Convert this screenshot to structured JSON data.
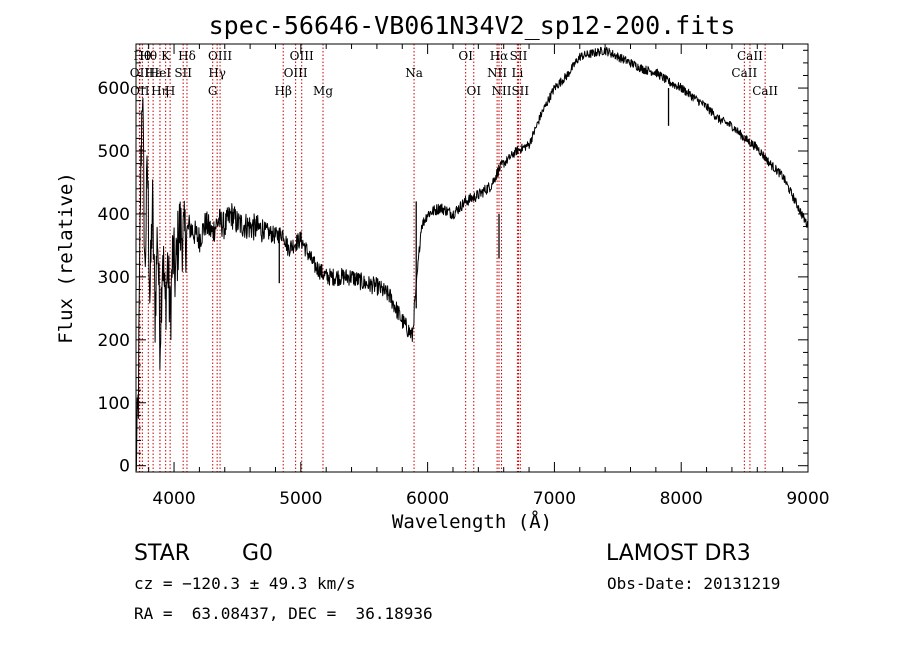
{
  "chart_data": {
    "type": "line",
    "title": "spec-56646-VB061N34V2_sp12-200.fits",
    "xlabel": "Wavelength (Å)",
    "ylabel": "Flux (relative)",
    "xlim": [
      3700,
      9000
    ],
    "ylim": [
      -10,
      670
    ],
    "xticks": [
      4000,
      5000,
      6000,
      7000,
      8000,
      9000
    ],
    "yticks": [
      0,
      100,
      200,
      300,
      400,
      500,
      600
    ],
    "series": [
      {
        "name": "flux",
        "anchors": [
          [
            3700,
            0
          ],
          [
            3710,
            50
          ],
          [
            3720,
            120
          ],
          [
            3735,
            430
          ],
          [
            3750,
            620
          ],
          [
            3770,
            300
          ],
          [
            3790,
            480
          ],
          [
            3810,
            260
          ],
          [
            3830,
            420
          ],
          [
            3850,
            240
          ],
          [
            3870,
            380
          ],
          [
            3890,
            200
          ],
          [
            3910,
            350
          ],
          [
            3930,
            250
          ],
          [
            3950,
            320
          ],
          [
            3970,
            230
          ],
          [
            3990,
            340
          ],
          [
            4010,
            300
          ],
          [
            4040,
            380
          ],
          [
            4080,
            360
          ],
          [
            4120,
            380
          ],
          [
            4200,
            360
          ],
          [
            4250,
            385
          ],
          [
            4300,
            370
          ],
          [
            4350,
            390
          ],
          [
            4400,
            380
          ],
          [
            4450,
            400
          ],
          [
            4500,
            385
          ],
          [
            4600,
            380
          ],
          [
            4700,
            375
          ],
          [
            4800,
            365
          ],
          [
            4860,
            370
          ],
          [
            4900,
            345
          ],
          [
            5000,
            360
          ],
          [
            5100,
            320
          ],
          [
            5200,
            300
          ],
          [
            5300,
            300
          ],
          [
            5400,
            300
          ],
          [
            5500,
            290
          ],
          [
            5600,
            285
          ],
          [
            5700,
            270
          ],
          [
            5750,
            250
          ],
          [
            5800,
            230
          ],
          [
            5850,
            215
          ],
          [
            5880,
            205
          ],
          [
            5900,
            260
          ],
          [
            5950,
            380
          ],
          [
            6000,
            400
          ],
          [
            6100,
            410
          ],
          [
            6200,
            400
          ],
          [
            6300,
            420
          ],
          [
            6400,
            430
          ],
          [
            6500,
            445
          ],
          [
            6560,
            470
          ],
          [
            6600,
            480
          ],
          [
            6700,
            500
          ],
          [
            6800,
            510
          ],
          [
            6900,
            560
          ],
          [
            7000,
            600
          ],
          [
            7100,
            620
          ],
          [
            7200,
            650
          ],
          [
            7300,
            655
          ],
          [
            7400,
            660
          ],
          [
            7500,
            650
          ],
          [
            7600,
            640
          ],
          [
            7700,
            630
          ],
          [
            7800,
            625
          ],
          [
            7900,
            610
          ],
          [
            8000,
            600
          ],
          [
            8100,
            585
          ],
          [
            8200,
            570
          ],
          [
            8300,
            550
          ],
          [
            8400,
            540
          ],
          [
            8500,
            520
          ],
          [
            8600,
            505
          ],
          [
            8700,
            480
          ],
          [
            8800,
            460
          ],
          [
            8900,
            420
          ],
          [
            8950,
            400
          ],
          [
            9000,
            380
          ]
        ]
      }
    ],
    "spikes": [
      {
        "x": 6563,
        "y0": 400,
        "y1": 330
      },
      {
        "x": 7900,
        "y0": 600,
        "y1": 540
      },
      {
        "x": 4830,
        "y0": 368,
        "y1": 290
      },
      {
        "x": 5910,
        "y0": 250,
        "y1": 420
      }
    ],
    "lines": [
      {
        "x": 3750,
        "label": "Hθ",
        "row": 0
      },
      {
        "x": 3727,
        "label": "OII",
        "row": 1
      },
      {
        "x": 3730,
        "label": "OII",
        "row": 2
      },
      {
        "x": 3797,
        "label": "Hθ",
        "row": 0
      },
      {
        "x": 3835,
        "label": "Hε",
        "row": 1
      },
      {
        "x": 3889,
        "label": "HeI",
        "row": 1
      },
      {
        "x": 3889,
        "label": "Hη",
        "row": 2
      },
      {
        "x": 3934,
        "label": "K",
        "row": 0
      },
      {
        "x": 3969,
        "label": "H",
        "row": 2
      },
      {
        "x": 4072,
        "label": "SII",
        "row": 1
      },
      {
        "x": 4102,
        "label": "Hδ",
        "row": 0
      },
      {
        "x": 4305,
        "label": "G",
        "row": 2
      },
      {
        "x": 4340,
        "label": "Hγ",
        "row": 1
      },
      {
        "x": 4363,
        "label": "OIII",
        "row": 0
      },
      {
        "x": 4861,
        "label": "Hβ",
        "row": 2
      },
      {
        "x": 4959,
        "label": "OIII",
        "row": 1
      },
      {
        "x": 5007,
        "label": "OIII",
        "row": 0
      },
      {
        "x": 5175,
        "label": "Mg",
        "row": 2
      },
      {
        "x": 5893,
        "label": "Na",
        "row": 1
      },
      {
        "x": 6300,
        "label": "OI",
        "row": 0
      },
      {
        "x": 6364,
        "label": "OI",
        "row": 2
      },
      {
        "x": 6548,
        "label": "NII",
        "row": 1
      },
      {
        "x": 6563,
        "label": "Hα",
        "row": 0
      },
      {
        "x": 6583,
        "label": "NII",
        "row": 2
      },
      {
        "x": 6708,
        "label": "Li",
        "row": 1
      },
      {
        "x": 6717,
        "label": "SII",
        "row": 0
      },
      {
        "x": 6731,
        "label": "SII",
        "row": 2
      },
      {
        "x": 8498,
        "label": "CaII",
        "row": 1
      },
      {
        "x": 8542,
        "label": "CaII",
        "row": 0
      },
      {
        "x": 8662,
        "label": "CaII",
        "row": 2
      }
    ]
  },
  "info": {
    "class": "STAR",
    "subclass": "G0",
    "survey": "LAMOST DR3",
    "cz": "cz = −120.3 ± 49.3 km/s",
    "obsdate": "Obs-Date: 20131219",
    "radec": "RA =  63.08437, DEC =  36.18936"
  },
  "colors": {
    "line": "#000000",
    "marker": "#cc0000"
  }
}
